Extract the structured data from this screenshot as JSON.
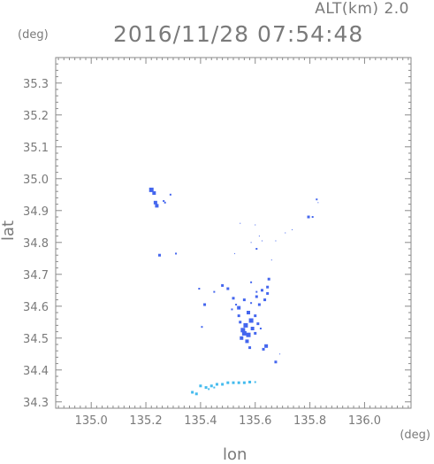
{
  "header": {
    "altitude_label": "ALT(km)  2.0",
    "timestamp": "2016/11/28 07:54:48"
  },
  "chart_data": {
    "type": "scatter",
    "title": "2016/11/28 07:54:48",
    "xlabel": "lon",
    "ylabel": "lat",
    "x_unit": "(deg)",
    "y_unit": "(deg)",
    "xlim": [
      134.87,
      136.17
    ],
    "ylim": [
      34.28,
      35.38
    ],
    "x_ticks": [
      135.0,
      135.2,
      135.4,
      135.6,
      135.8,
      136.0
    ],
    "x_tick_labels": [
      "135.0",
      "135.2",
      "135.4",
      "135.6",
      "135.8",
      "136.0"
    ],
    "y_ticks": [
      34.3,
      34.4,
      34.5,
      34.6,
      34.7,
      34.8,
      34.9,
      35.0,
      35.1,
      35.2,
      35.3
    ],
    "y_tick_labels": [
      "34.3",
      "34.4",
      "34.5",
      "34.6",
      "34.7",
      "34.8",
      "34.9",
      "35.0",
      "35.1",
      "35.2",
      "35.3"
    ],
    "grid": false,
    "colors": {
      "blue": "#4466ee",
      "cyan": "#44bbee",
      "axis": "#8a8a8a"
    },
    "series": [
      {
        "color": "#4466ee",
        "points": [
          {
            "x": 135.22,
            "y": 34.965,
            "s": 5
          },
          {
            "x": 135.23,
            "y": 34.955,
            "s": 4
          },
          {
            "x": 135.235,
            "y": 34.925,
            "s": 4
          },
          {
            "x": 135.24,
            "y": 34.915,
            "s": 4
          },
          {
            "x": 135.265,
            "y": 34.93,
            "s": 2
          },
          {
            "x": 135.29,
            "y": 34.95,
            "s": 2
          },
          {
            "x": 135.27,
            "y": 34.925,
            "s": 2
          },
          {
            "x": 135.25,
            "y": 34.76,
            "s": 3
          },
          {
            "x": 135.31,
            "y": 34.765,
            "s": 2
          },
          {
            "x": 135.395,
            "y": 34.655,
            "s": 2
          },
          {
            "x": 135.405,
            "y": 34.535,
            "s": 2
          },
          {
            "x": 135.415,
            "y": 34.605,
            "s": 3
          },
          {
            "x": 135.45,
            "y": 34.645,
            "s": 2
          },
          {
            "x": 135.48,
            "y": 34.665,
            "s": 3
          },
          {
            "x": 135.5,
            "y": 34.655,
            "s": 3
          },
          {
            "x": 135.52,
            "y": 34.625,
            "s": 3
          },
          {
            "x": 135.54,
            "y": 34.595,
            "s": 4
          },
          {
            "x": 135.56,
            "y": 34.62,
            "s": 3
          },
          {
            "x": 135.575,
            "y": 34.58,
            "s": 4
          },
          {
            "x": 135.585,
            "y": 34.555,
            "s": 5
          },
          {
            "x": 135.59,
            "y": 34.53,
            "s": 4
          },
          {
            "x": 135.565,
            "y": 34.54,
            "s": 5
          },
          {
            "x": 135.56,
            "y": 34.515,
            "s": 5
          },
          {
            "x": 135.55,
            "y": 34.5,
            "s": 4
          },
          {
            "x": 135.57,
            "y": 34.49,
            "s": 4
          },
          {
            "x": 135.6,
            "y": 34.57,
            "s": 3
          },
          {
            "x": 135.605,
            "y": 34.63,
            "s": 3
          },
          {
            "x": 135.615,
            "y": 34.605,
            "s": 3
          },
          {
            "x": 135.625,
            "y": 34.65,
            "s": 3
          },
          {
            "x": 135.635,
            "y": 34.62,
            "s": 3
          },
          {
            "x": 135.645,
            "y": 34.66,
            "s": 3
          },
          {
            "x": 135.65,
            "y": 34.685,
            "s": 3
          },
          {
            "x": 135.645,
            "y": 34.64,
            "s": 3
          },
          {
            "x": 135.605,
            "y": 34.645,
            "s": 2
          },
          {
            "x": 135.585,
            "y": 34.61,
            "s": 2
          },
          {
            "x": 135.585,
            "y": 34.675,
            "s": 2
          },
          {
            "x": 135.585,
            "y": 34.8,
            "s": 1
          },
          {
            "x": 135.605,
            "y": 34.78,
            "s": 2
          },
          {
            "x": 135.6,
            "y": 34.855,
            "s": 1
          },
          {
            "x": 135.525,
            "y": 34.765,
            "s": 1
          },
          {
            "x": 135.545,
            "y": 34.86,
            "s": 1
          },
          {
            "x": 135.615,
            "y": 34.82,
            "s": 1
          },
          {
            "x": 135.625,
            "y": 34.805,
            "s": 1
          },
          {
            "x": 135.675,
            "y": 34.805,
            "s": 1
          },
          {
            "x": 135.64,
            "y": 34.475,
            "s": 4
          },
          {
            "x": 135.63,
            "y": 34.465,
            "s": 3
          },
          {
            "x": 135.675,
            "y": 34.425,
            "s": 3
          },
          {
            "x": 135.69,
            "y": 34.45,
            "s": 1
          },
          {
            "x": 135.66,
            "y": 34.745,
            "s": 1
          },
          {
            "x": 135.71,
            "y": 34.83,
            "s": 1
          },
          {
            "x": 135.735,
            "y": 34.84,
            "s": 1
          },
          {
            "x": 135.795,
            "y": 34.88,
            "s": 3
          },
          {
            "x": 135.81,
            "y": 34.88,
            "s": 2
          },
          {
            "x": 135.825,
            "y": 34.935,
            "s": 2
          },
          {
            "x": 135.83,
            "y": 34.925,
            "s": 1
          },
          {
            "x": 135.54,
            "y": 34.57,
            "s": 3
          },
          {
            "x": 135.545,
            "y": 34.55,
            "s": 3
          },
          {
            "x": 135.61,
            "y": 34.545,
            "s": 3
          },
          {
            "x": 135.62,
            "y": 34.53,
            "s": 2
          },
          {
            "x": 135.58,
            "y": 34.47,
            "s": 3
          },
          {
            "x": 135.6,
            "y": 34.515,
            "s": 3
          },
          {
            "x": 135.53,
            "y": 34.605,
            "s": 2
          },
          {
            "x": 135.515,
            "y": 34.59,
            "s": 2
          },
          {
            "x": 135.555,
            "y": 34.525,
            "s": 5
          },
          {
            "x": 135.575,
            "y": 34.51,
            "s": 5
          }
        ]
      },
      {
        "color": "#44bbee",
        "points": [
          {
            "x": 135.37,
            "y": 34.33,
            "s": 3
          },
          {
            "x": 135.385,
            "y": 34.325,
            "s": 3
          },
          {
            "x": 135.4,
            "y": 34.35,
            "s": 3
          },
          {
            "x": 135.42,
            "y": 34.345,
            "s": 3
          },
          {
            "x": 135.44,
            "y": 34.35,
            "s": 3
          },
          {
            "x": 135.46,
            "y": 34.355,
            "s": 3
          },
          {
            "x": 135.48,
            "y": 34.355,
            "s": 3
          },
          {
            "x": 135.5,
            "y": 34.36,
            "s": 3
          },
          {
            "x": 135.52,
            "y": 34.36,
            "s": 3
          },
          {
            "x": 135.54,
            "y": 34.36,
            "s": 3
          },
          {
            "x": 135.56,
            "y": 34.36,
            "s": 3
          },
          {
            "x": 135.58,
            "y": 34.362,
            "s": 3
          },
          {
            "x": 135.6,
            "y": 34.362,
            "s": 2
          },
          {
            "x": 135.43,
            "y": 34.34,
            "s": 2
          },
          {
            "x": 135.45,
            "y": 34.345,
            "s": 2
          }
        ]
      }
    ]
  }
}
